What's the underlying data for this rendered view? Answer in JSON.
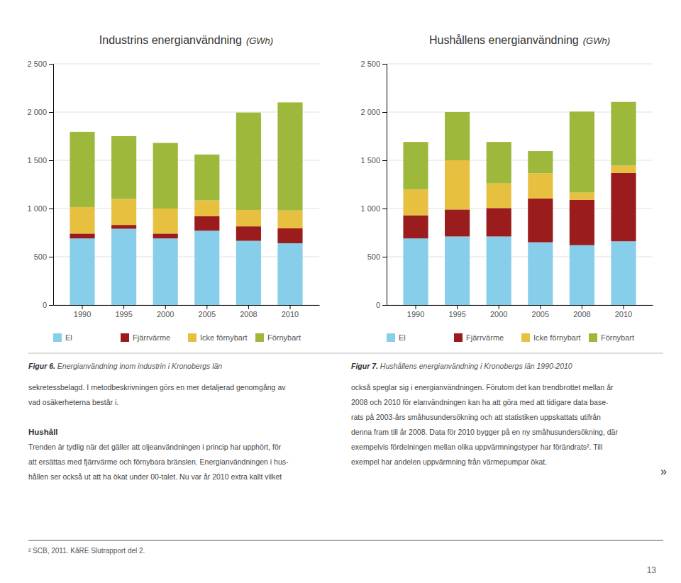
{
  "chart_data": [
    {
      "type": "bar",
      "stacked": true,
      "grid": true,
      "title": "Industrins energianvändning",
      "subtitle": "(GWh)",
      "categories": [
        "1990",
        "1995",
        "2000",
        "2005",
        "2008",
        "2010"
      ],
      "series": [
        {
          "name": "El",
          "color": "#87CEEB",
          "values": [
            690,
            790,
            690,
            770,
            665,
            640
          ]
        },
        {
          "name": "Fjärrvärme",
          "color": "#9B1C1C",
          "values": [
            50,
            40,
            50,
            150,
            150,
            155
          ]
        },
        {
          "name": "Icke förnybart",
          "color": "#E8C040",
          "values": [
            275,
            270,
            260,
            165,
            170,
            185
          ]
        },
        {
          "name": "Förnybart",
          "color": "#9DB83A",
          "values": [
            780,
            650,
            680,
            475,
            1010,
            1120
          ]
        }
      ],
      "ylim": [
        0,
        2500
      ],
      "yticks": [
        0,
        500,
        {
          "value": 1000,
          "label": "1 000"
        },
        {
          "value": 1500,
          "label": "1 500"
        },
        {
          "value": 2000,
          "label": "2 000"
        },
        {
          "value": 2500,
          "label": "2 500"
        }
      ]
    },
    {
      "type": "bar",
      "stacked": true,
      "grid": true,
      "title": "Hushållens energianvändning",
      "subtitle": "(GWh)",
      "categories": [
        "1990",
        "1995",
        "2000",
        "2005",
        "2008",
        "2010"
      ],
      "series": [
        {
          "name": "El",
          "color": "#87CEEB",
          "values": [
            690,
            710,
            710,
            650,
            620,
            660
          ]
        },
        {
          "name": "Fjärrvärme",
          "color": "#9B1C1C",
          "values": [
            240,
            280,
            295,
            455,
            470,
            710
          ]
        },
        {
          "name": "Icke förnybart",
          "color": "#E8C040",
          "values": [
            270,
            510,
            255,
            260,
            75,
            75
          ]
        },
        {
          "name": "Förnybart",
          "color": "#9DB83A",
          "values": [
            490,
            500,
            430,
            230,
            840,
            660
          ]
        }
      ],
      "ylim": [
        0,
        2500
      ],
      "yticks": [
        0,
        500,
        {
          "value": 1000,
          "label": "1 000"
        },
        {
          "value": 1500,
          "label": "1 500"
        },
        {
          "value": 2000,
          "label": "2 000"
        },
        {
          "value": 2500,
          "label": "2 500"
        }
      ]
    }
  ],
  "page_text": {
    "captions": [
      {
        "number": "Figur 6.",
        "text": " Energianvändning inom industrin i Kronobergs län"
      },
      {
        "number": "Figur 7.",
        "text": " Hushållens energianvändning i Kronobergs län 1990-2010"
      }
    ],
    "body_left_intro": [
      "sekretessbelagd. I metodbeskrivningen görs en mer detaljerad genomgång av",
      "vad osäkerheterna består i."
    ],
    "heading": "Hushåll",
    "body_left": [
      "Trenden är tydlig när det gäller att oljeanvändningen i princip har upphört, för",
      "att ersättas med fjärrvärme och förnybara bränslen. Energianvändningen i hus-",
      "hållen ser också ut att ha ökat under 00-talet. Nu var år 2010 extra kallt vilket"
    ],
    "body_right": [
      "också speglar sig i energianvändningen. Förutom det kan trendbrottet mellan år",
      "2008 och 2010 för elanvändningen kan ha att göra med att tidigare data base-",
      "rats på 2003-års småhusundersökning och att statistiken uppskattats utifrån",
      "denna fram till år 2008. Data för 2010 bygger på en ny småhusundersökning, där",
      "exempelvis fördelningen mellan olika uppvärmningstyper har förändrats². Till",
      "exempel har andelen uppvärmning från värmepumpar ökat."
    ],
    "footnote": "² SCB, 2011. KåRE Slutrapport del 2.",
    "page_number": "13",
    "nav": "»"
  }
}
